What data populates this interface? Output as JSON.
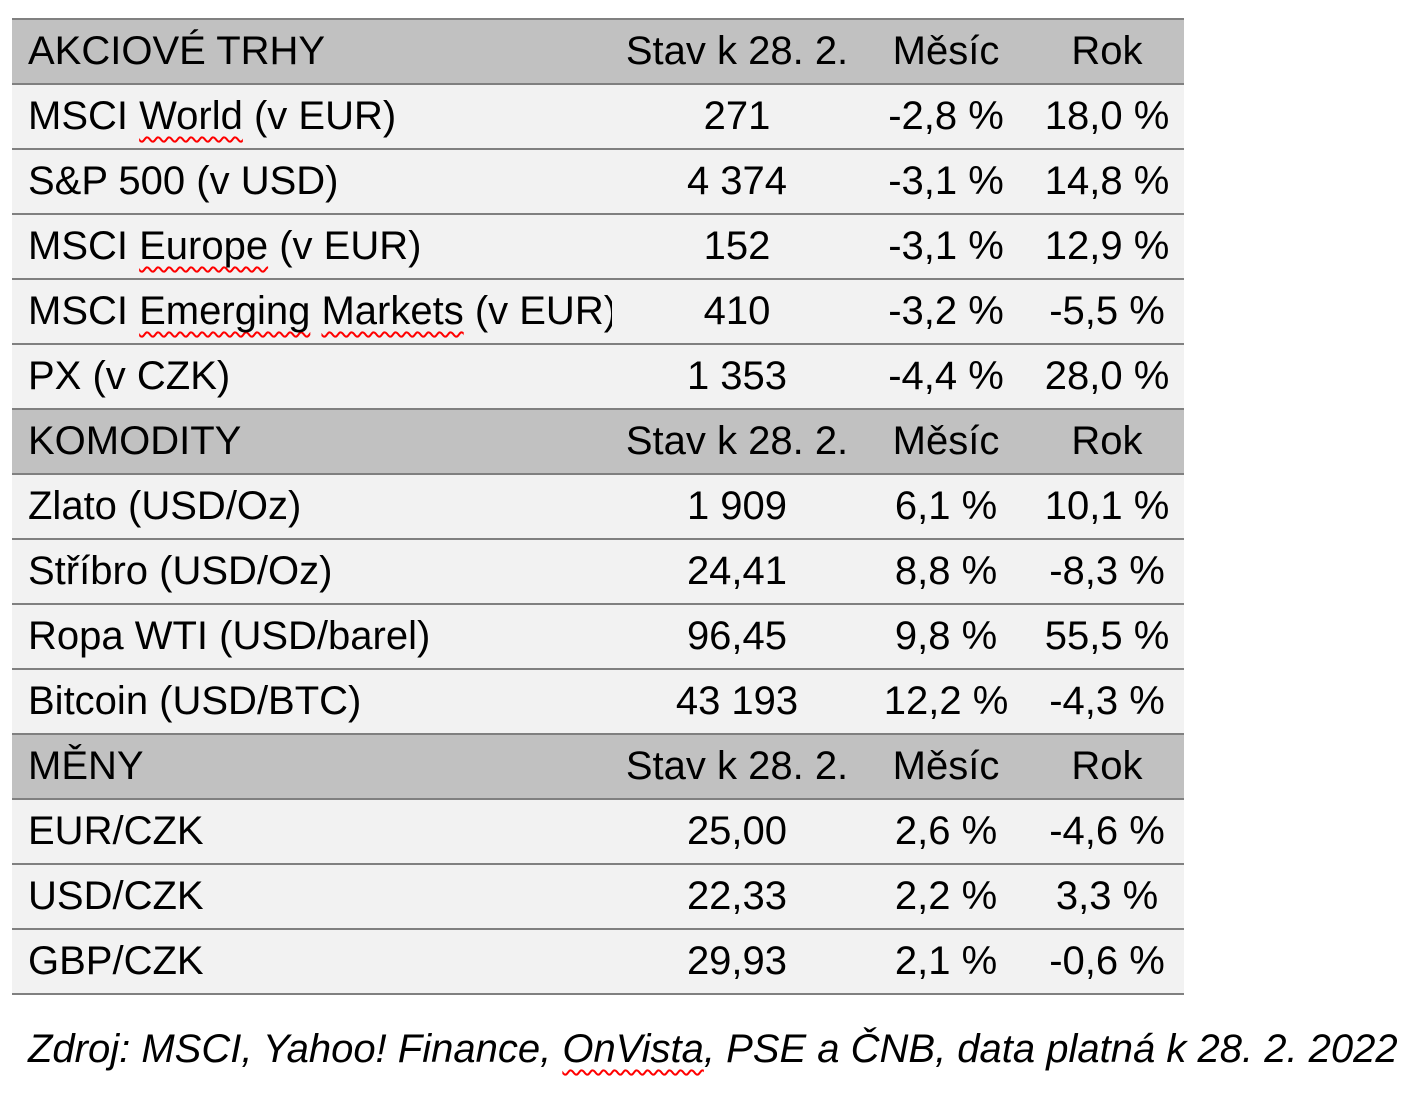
{
  "colors": {
    "header_bg": "#c1c1c1",
    "row_bg": "#f2f2f2",
    "border": "#808080",
    "squiggle": "#ff0000",
    "text": "#000000"
  },
  "table": {
    "header_cols": [
      "Stav k 28. 2.",
      "Měsíc",
      "Rok"
    ],
    "sections": [
      {
        "title": "AKCIOVÉ TRHY",
        "rows": [
          {
            "label_parts": [
              {
                "t": "MSCI ",
                "m": false
              },
              {
                "t": "World",
                "m": true
              },
              {
                "t": " (v EUR)",
                "m": false
              }
            ],
            "state": "271",
            "month": "-2,8 %",
            "year": "18,0 %"
          },
          {
            "label_parts": [
              {
                "t": "S&P 500 (v USD)",
                "m": false
              }
            ],
            "state": "4 374",
            "month": "-3,1 %",
            "year": "14,8 %"
          },
          {
            "label_parts": [
              {
                "t": "MSCI ",
                "m": false
              },
              {
                "t": "Europe",
                "m": true
              },
              {
                "t": " (v EUR)",
                "m": false
              }
            ],
            "state": "152",
            "month": "-3,1 %",
            "year": "12,9 %"
          },
          {
            "label_parts": [
              {
                "t": "MSCI ",
                "m": false
              },
              {
                "t": "Emerging",
                "m": true
              },
              {
                "t": " ",
                "m": false
              },
              {
                "t": "Markets",
                "m": true
              },
              {
                "t": " (v EUR)",
                "m": false
              }
            ],
            "state": "410",
            "month": "-3,2 %",
            "year": "-5,5 %"
          },
          {
            "label_parts": [
              {
                "t": "PX (v CZK)",
                "m": false
              }
            ],
            "state": "1 353",
            "month": "-4,4 %",
            "year": "28,0 %"
          }
        ]
      },
      {
        "title": "KOMODITY",
        "rows": [
          {
            "label_parts": [
              {
                "t": "Zlato (USD/Oz)",
                "m": false
              }
            ],
            "state": "1 909",
            "month": "6,1 %",
            "year": "10,1 %"
          },
          {
            "label_parts": [
              {
                "t": "Stříbro (USD/Oz)",
                "m": false
              }
            ],
            "state": "24,41",
            "month": "8,8 %",
            "year": "-8,3 %"
          },
          {
            "label_parts": [
              {
                "t": "Ropa WTI (USD/barel)",
                "m": false
              }
            ],
            "state": "96,45",
            "month": "9,8 %",
            "year": "55,5 %"
          },
          {
            "label_parts": [
              {
                "t": "Bitcoin (USD/BTC)",
                "m": false
              }
            ],
            "state": "43 193",
            "month": "12,2 %",
            "year": "-4,3 %"
          }
        ]
      },
      {
        "title": "MĚNY",
        "rows": [
          {
            "label_parts": [
              {
                "t": "EUR/CZK",
                "m": false
              }
            ],
            "state": "25,00",
            "month": "2,6 %",
            "year": "-4,6 %"
          },
          {
            "label_parts": [
              {
                "t": "USD/CZK",
                "m": false
              }
            ],
            "state": "22,33",
            "month": "2,2 %",
            "year": "3,3 %"
          },
          {
            "label_parts": [
              {
                "t": "GBP/CZK",
                "m": false
              }
            ],
            "state": "29,93",
            "month": "2,1 %",
            "year": "-0,6 %"
          }
        ]
      }
    ]
  },
  "footer": {
    "source_parts": [
      {
        "t": "Zdroj: MSCI, Yahoo! Finance, ",
        "m": false
      },
      {
        "t": "OnVista",
        "m": true
      },
      {
        "t": ", PSE a ČNB, data platná k 28. 2. 2022",
        "m": false
      }
    ]
  }
}
